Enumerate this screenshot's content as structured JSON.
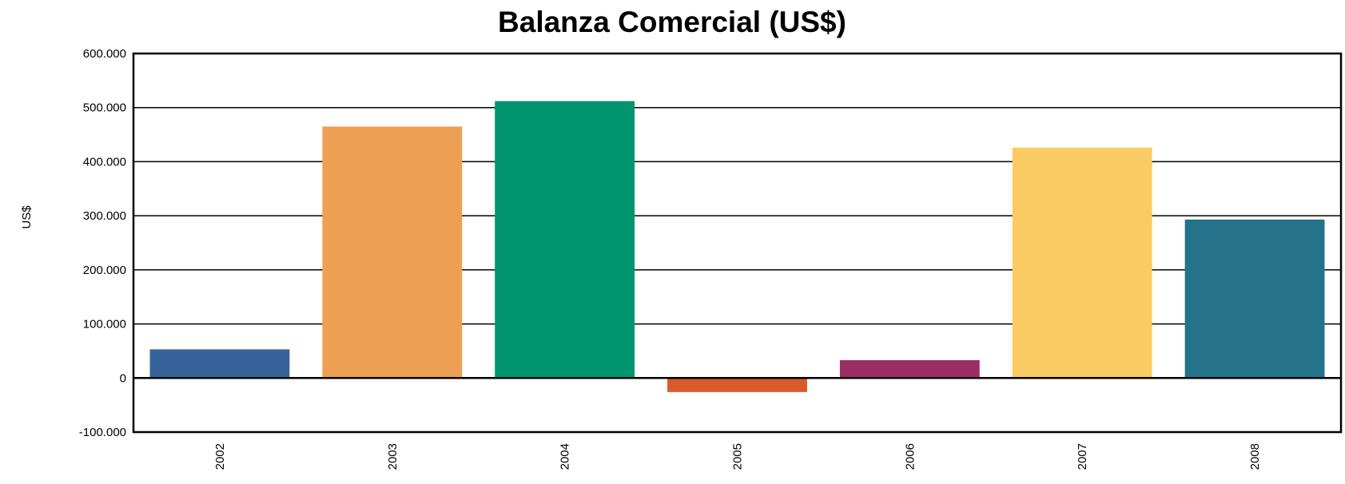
{
  "chart_data": {
    "type": "bar",
    "title": "Balanza Comercial (US$)",
    "xlabel": "",
    "ylabel": "US$",
    "ylim": [
      -100000,
      600000
    ],
    "yticks": [
      -100000,
      0,
      100000,
      200000,
      300000,
      400000,
      500000,
      600000
    ],
    "ytick_labels": [
      "-100.000",
      "0",
      "100.000",
      "200.000",
      "300.000",
      "400.000",
      "500.000",
      "600.000"
    ],
    "grid": true,
    "categories": [
      "2002",
      "2003",
      "2004",
      "2005",
      "2006",
      "2007",
      "2008"
    ],
    "values": [
      53000,
      465000,
      512000,
      -26000,
      33000,
      426000,
      293000
    ],
    "colors": [
      "#36649a",
      "#eda054",
      "#00956f",
      "#d85c29",
      "#9c2e62",
      "#f9cb62",
      "#24738a"
    ]
  }
}
